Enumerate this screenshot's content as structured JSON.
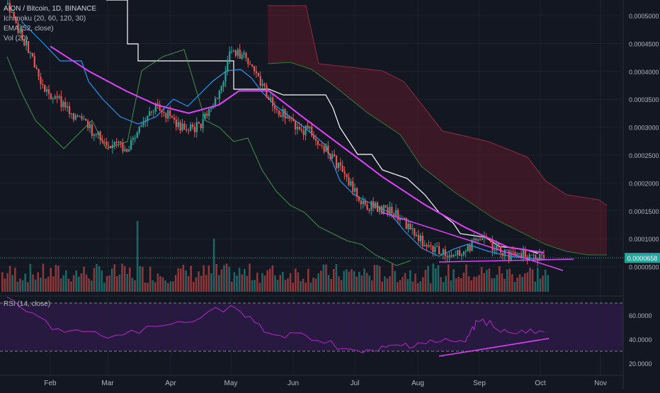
{
  "legend": {
    "title": "AION / Bitcoin, 1D, BINANCE",
    "ichimoku": "Ichimoku (20, 60, 120, 30)",
    "ema": "EMA (52, close)",
    "vol": "Vol (20)"
  },
  "rsi_label": "RSI (14, close)",
  "colors": {
    "background": "#131722",
    "up": "#26a69a",
    "down": "#ef5350",
    "ema": "#e040fb",
    "conversion": "#2196f3",
    "base": "#ffffff",
    "lagging": "#4caf50",
    "cloud": "#5d1a28",
    "rsi": "#9c27b0",
    "rsi_band": "#2a1a44",
    "trendline": "#e040fb",
    "price_tag": "#26a69a"
  },
  "chart_data": [
    {
      "type": "candlestick",
      "title": "AION / Bitcoin, 1D, BINANCE",
      "x_labels": [
        "Feb",
        "Mar",
        "Apr",
        "May",
        "Jun",
        "Jul",
        "Aug",
        "Sep",
        "Oct",
        "Nov"
      ],
      "ylim": [
        0.0,
        0.00053
      ],
      "y_ticks": [
        "0.0005000",
        "0.0004500",
        "0.0004000",
        "0.0003500",
        "0.0003000",
        "0.0002500",
        "0.0002000",
        "0.0001500",
        "0.0001000",
        "0.0000500"
      ],
      "last_price": "0.0000658",
      "price_path": [
        {
          "x": "Jan 10",
          "y": 0.00052
        },
        {
          "x": "Jan 20",
          "y": 0.00044
        },
        {
          "x": "Jan 28",
          "y": 0.00037
        },
        {
          "x": "Feb 10",
          "y": 0.00033
        },
        {
          "x": "Feb 25",
          "y": 0.00028
        },
        {
          "x": "Mar 10",
          "y": 0.00026
        },
        {
          "x": "Mar 25",
          "y": 0.00034
        },
        {
          "x": "Apr 5",
          "y": 0.0003
        },
        {
          "x": "Apr 15",
          "y": 0.0003
        },
        {
          "x": "Apr 25",
          "y": 0.00036
        },
        {
          "x": "May 1",
          "y": 0.00044
        },
        {
          "x": "May 10",
          "y": 0.00042
        },
        {
          "x": "May 20",
          "y": 0.00035
        },
        {
          "x": "Jun 1",
          "y": 0.0003
        },
        {
          "x": "Jun 10",
          "y": 0.00029
        },
        {
          "x": "Jun 25",
          "y": 0.00022
        },
        {
          "x": "Jul 5",
          "y": 0.00016
        },
        {
          "x": "Jul 20",
          "y": 0.00015
        },
        {
          "x": "Aug 1",
          "y": 0.0001
        },
        {
          "x": "Aug 15",
          "y": 7e-05
        },
        {
          "x": "Aug 25",
          "y": 8e-05
        },
        {
          "x": "Sep 1",
          "y": 0.0001
        },
        {
          "x": "Sep 15",
          "y": 7e-05
        },
        {
          "x": "Oct 1",
          "y": 7e-05
        },
        {
          "x": "Oct 3",
          "y": 6.58e-05
        }
      ],
      "ema_52": [
        {
          "x": "Feb 1",
          "y": 0.000445
        },
        {
          "x": "Feb 20",
          "y": 0.0004
        },
        {
          "x": "Mar 10",
          "y": 0.000365
        },
        {
          "x": "Mar 25",
          "y": 0.00034
        },
        {
          "x": "Apr 10",
          "y": 0.000325
        },
        {
          "x": "Apr 25",
          "y": 0.00034
        },
        {
          "x": "May 5",
          "y": 0.000365
        },
        {
          "x": "May 20",
          "y": 0.000365
        },
        {
          "x": "Jun 5",
          "y": 0.00032
        },
        {
          "x": "Jun 25",
          "y": 0.000265
        },
        {
          "x": "Jul 15",
          "y": 0.00021
        },
        {
          "x": "Aug 5",
          "y": 0.00016
        },
        {
          "x": "Aug 25",
          "y": 0.00012
        },
        {
          "x": "Sep 15",
          "y": 8.5e-05
        },
        {
          "x": "Oct 3",
          "y": 7.5e-05
        }
      ],
      "rsi": {
        "ylim": [
          10,
          80
        ],
        "y_ticks": [
          "60.0000",
          "40.0000",
          "20.0000"
        ],
        "bands": [
          70,
          30
        ],
        "values": [
          {
            "x": "Jan 10",
            "y": 72
          },
          {
            "x": "Feb 5",
            "y": 48
          },
          {
            "x": "Mar 1",
            "y": 42
          },
          {
            "x": "Apr 1",
            "y": 52
          },
          {
            "x": "May 1",
            "y": 68
          },
          {
            "x": "May 20",
            "y": 44
          },
          {
            "x": "Jun 10",
            "y": 42
          },
          {
            "x": "Jul 5",
            "y": 28
          },
          {
            "x": "Jul 20",
            "y": 34
          },
          {
            "x": "Aug 5",
            "y": 38
          },
          {
            "x": "Aug 25",
            "y": 38
          },
          {
            "x": "Sep 1",
            "y": 58
          },
          {
            "x": "Sep 15",
            "y": 45
          },
          {
            "x": "Oct 3",
            "y": 46
          }
        ]
      }
    }
  ]
}
